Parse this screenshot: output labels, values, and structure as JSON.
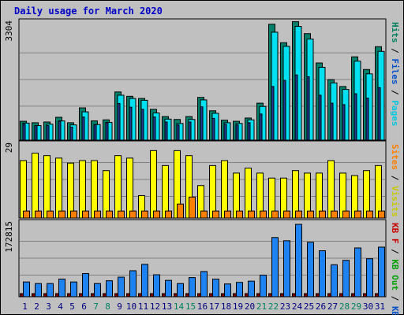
{
  "title": "Daily usage for March 2020",
  "chart_data": [
    {
      "type": "bar",
      "title": "Daily usage for March 2020",
      "ymax_label": "3304",
      "ylim": [
        0,
        3304
      ],
      "categories": [
        "1",
        "2",
        "3",
        "4",
        "5",
        "6",
        "7",
        "8",
        "9",
        "10",
        "11",
        "12",
        "13",
        "14",
        "15",
        "16",
        "17",
        "18",
        "19",
        "20",
        "21",
        "22",
        "23",
        "24",
        "25",
        "26",
        "27",
        "28",
        "29",
        "30",
        "31"
      ],
      "weekend_days": [
        "7",
        "8",
        "14",
        "15",
        "21",
        "22",
        "28",
        "29"
      ],
      "legend": [
        {
          "text": "Pages",
          "color": "#00c8e0"
        },
        {
          "text": "Files",
          "color": "#0050c8"
        },
        {
          "text": "Hits",
          "color": "#008060"
        }
      ],
      "series": [
        {
          "name": "Hits",
          "color": "#00806a",
          "values": [
            520,
            480,
            500,
            630,
            480,
            890,
            530,
            560,
            1330,
            1210,
            1150,
            850,
            650,
            570,
            650,
            1180,
            810,
            550,
            520,
            610,
            1020,
            3200,
            2690,
            3270,
            2940,
            2130,
            1670,
            1480,
            2300,
            1950,
            2580
          ]
        },
        {
          "name": "Files",
          "color": "#1e3c96",
          "values": [
            440,
            400,
            400,
            520,
            360,
            640,
            430,
            480,
            1010,
            910,
            850,
            640,
            500,
            420,
            500,
            920,
            600,
            440,
            420,
            480,
            720,
            1480,
            1650,
            1800,
            1750,
            1240,
            1020,
            980,
            1280,
            1160,
            1450
          ]
        },
        {
          "name": "Pages",
          "color": "#00e0f0",
          "values": [
            470,
            400,
            440,
            530,
            420,
            780,
            430,
            490,
            1240,
            1150,
            1100,
            750,
            580,
            460,
            570,
            1110,
            740,
            480,
            460,
            560,
            930,
            2980,
            2590,
            3140,
            2790,
            2010,
            1580,
            1400,
            2180,
            1830,
            2450
          ]
        }
      ]
    },
    {
      "type": "bar",
      "ymax_label": "29",
      "ylim": [
        0,
        29
      ],
      "legend": [
        {
          "text": "Visits",
          "color": "#c8c800"
        },
        {
          "text": "Sites",
          "color": "#ff8000"
        }
      ],
      "series": [
        {
          "name": "Visits",
          "color": "#ffff00",
          "values": [
            23,
            26,
            25,
            24,
            22,
            23,
            23,
            19,
            25,
            24,
            9,
            27,
            21,
            27,
            25,
            13,
            21,
            23,
            18,
            20,
            18,
            16,
            16,
            19,
            18,
            18,
            23,
            18,
            17,
            19,
            21
          ]
        },
        {
          "name": "Sites",
          "color": "#ff8000",
          "values": [
            1,
            1,
            1,
            1,
            1,
            1,
            1,
            1,
            1,
            1,
            1,
            1,
            1,
            2,
            3,
            1,
            1,
            1,
            1,
            1,
            1,
            1,
            1,
            1,
            1,
            1,
            1,
            1,
            1,
            1,
            1
          ]
        }
      ]
    },
    {
      "type": "bar",
      "ymax_label": "172815",
      "ylim": [
        0,
        172815
      ],
      "legend": [
        {
          "text": "KB In",
          "color": "#0050c8"
        },
        {
          "text": "KB Out",
          "color": "#00a000"
        },
        {
          "text": "KB F",
          "color": "#c80000"
        }
      ],
      "series": [
        {
          "name": "KB In",
          "color": "#1e82f0",
          "values": [
            37000,
            33000,
            33000,
            44000,
            37000,
            58000,
            33000,
            40000,
            49000,
            65000,
            81000,
            55000,
            41000,
            33000,
            48000,
            63000,
            44000,
            32000,
            36000,
            39000,
            54000,
            148000,
            140000,
            181000,
            136000,
            115000,
            80000,
            91000,
            122000,
            95000,
            124000
          ]
        },
        {
          "name": "KB F",
          "color": "#800000",
          "values": [
            2000,
            2000,
            2000,
            2000,
            2000,
            2000,
            2000,
            2000,
            2000,
            2000,
            2000,
            2000,
            2000,
            2000,
            2000,
            2000,
            2000,
            2000,
            2000,
            2000,
            2000,
            2000,
            2000,
            2000,
            2000,
            2000,
            2000,
            2000,
            2000,
            2000,
            2000
          ]
        }
      ]
    }
  ]
}
